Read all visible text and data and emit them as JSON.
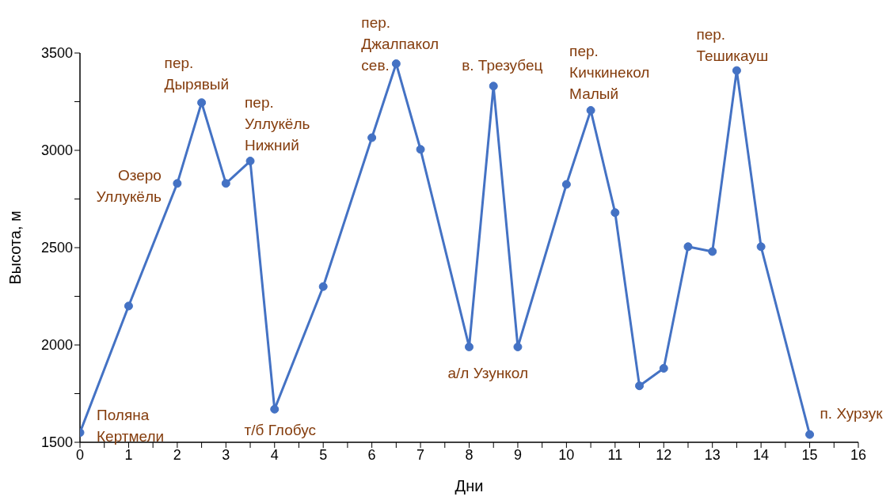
{
  "chart_data": {
    "type": "line",
    "xlabel": "Дни",
    "ylabel": "Высота, м",
    "x": [
      0,
      1,
      2,
      2.5,
      3,
      3.5,
      4,
      5,
      6,
      6.5,
      7,
      8,
      8.5,
      9,
      10,
      10.5,
      11,
      11.5,
      12,
      12.5,
      13,
      13.5,
      14,
      15
    ],
    "series": [
      {
        "color": "#4472c4",
        "values": [
          1550,
          2200,
          2830,
          3245,
          2830,
          2945,
          1670,
          2300,
          3065,
          3445,
          3005,
          1990,
          3330,
          1990,
          2825,
          3205,
          2680,
          1790,
          1880,
          2505,
          2480,
          3410,
          2505,
          1540
        ]
      }
    ],
    "xlim": [
      0,
      16
    ],
    "xticks": [
      0,
      {
        "value": 0.5,
        "label": null
      },
      1,
      {
        "value": 1.5,
        "label": null
      },
      2,
      {
        "value": 2.5,
        "label": null
      },
      3,
      {
        "value": 3.5,
        "label": null
      },
      4,
      {
        "value": 4.5,
        "label": null
      },
      5,
      {
        "value": 5.5,
        "label": null
      },
      6,
      {
        "value": 6.5,
        "label": null
      },
      7,
      {
        "value": 7.5,
        "label": null
      },
      8,
      {
        "value": 8.5,
        "label": null
      },
      9,
      {
        "value": 9.5,
        "label": null
      },
      10,
      {
        "value": 10.5,
        "label": null
      },
      11,
      {
        "value": 11.5,
        "label": null
      },
      12,
      {
        "value": 12.5,
        "label": null
      },
      13,
      {
        "value": 13.5,
        "label": null
      },
      14,
      {
        "value": 14.5,
        "label": null
      },
      15,
      {
        "value": 15.5,
        "label": null
      },
      16
    ],
    "ylim": [
      1500,
      3500
    ],
    "yticks": [
      1500,
      {
        "value": 1750,
        "label": null
      },
      2000,
      {
        "value": 2250,
        "label": null
      },
      2500,
      {
        "value": 2750,
        "label": null
      },
      3000,
      {
        "value": 3250,
        "label": null
      },
      3500
    ],
    "grid": false,
    "legend": false,
    "marker": "circle",
    "line_style": "solid",
    "annotations": [
      {
        "text": "Поляна\nКертмели",
        "x": 0,
        "y": 1550
      },
      {
        "text": "Озеро\nУллукёль",
        "x": 2,
        "y": 2830
      },
      {
        "text": "пер.\nДырявый",
        "x": 2.5,
        "y": 3245
      },
      {
        "text": "пер.\nУллукёль\nНижний",
        "x": 3.5,
        "y": 2945
      },
      {
        "text": "т/б Глобус",
        "x": 4,
        "y": 1670
      },
      {
        "text": "пер.\nДжалпакол\nсев.",
        "x": 6.5,
        "y": 3445
      },
      {
        "text": "а/л Узункол",
        "x": 8,
        "y": 1990
      },
      {
        "text": "в. Трезубец",
        "x": 8.5,
        "y": 3330
      },
      {
        "text": "пер.\nКичкинекол\nМалый",
        "x": 10.5,
        "y": 3205
      },
      {
        "text": "пер.\nТешикауш",
        "x": 13.5,
        "y": 3410
      },
      {
        "text": "п. Хурзук",
        "x": 15,
        "y": 1540
      }
    ]
  }
}
